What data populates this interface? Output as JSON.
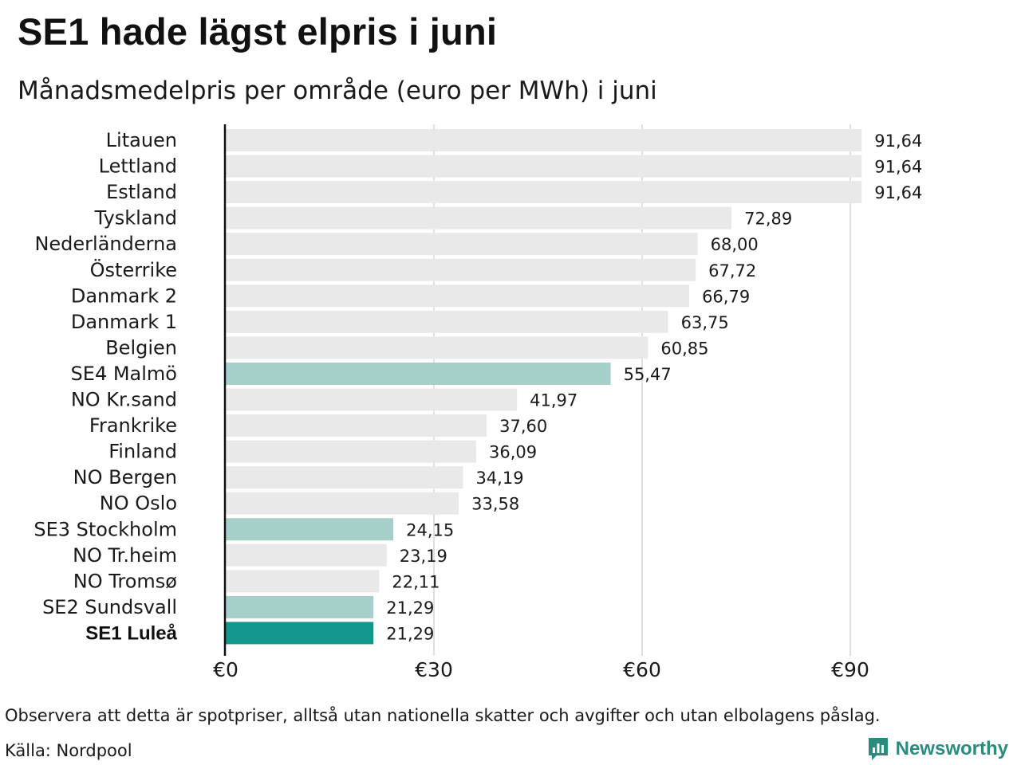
{
  "title": "SE1 hade lägst elpris i juni",
  "subtitle": "Månadsmedelpris per område (euro per MWh) i juni",
  "note": "Observera att detta är spotpriser, alltså utan nationella skatter och avgifter och utan elbolagens påslag.",
  "source": "Källa: Nordpool",
  "brand": {
    "name": "Newsworthy",
    "icon": "newsworthy-logo-icon"
  },
  "colors": {
    "default_bar": "#e9e9e9",
    "se_bar": "#a6cfca",
    "highlight_bar": "#15968a",
    "grid": "#cccccc",
    "axis": "#111111"
  },
  "chart_data": {
    "type": "bar",
    "orientation": "horizontal",
    "title": "SE1 hade lägst elpris i juni",
    "subtitle": "Månadsmedelpris per område (euro per MWh) i juni",
    "xlabel": "",
    "ylabel": "",
    "xlim": [
      0,
      100
    ],
    "ticks": [
      0,
      30,
      60,
      90
    ],
    "tick_labels": [
      "€0",
      "€30",
      "€60",
      "€90"
    ],
    "grid": true,
    "categories": [
      "Litauen",
      "Lettland",
      "Estland",
      "Tyskland",
      "Nederländerna",
      "Österrike",
      "Danmark  2",
      "Danmark  1",
      "Belgien",
      "SE4  Malmö",
      "NO Kr.sand",
      "Frankrike",
      "Finland",
      "NO Bergen",
      "NO Oslo",
      "SE3  Stockholm",
      "NO Tr.heim",
      "NO Tromsø",
      "SE2  Sundsvall",
      "SE1 Luleå"
    ],
    "values": [
      91.64,
      91.64,
      91.64,
      72.89,
      68.0,
      67.72,
      66.79,
      63.75,
      60.85,
      55.47,
      41.97,
      37.6,
      36.09,
      34.19,
      33.58,
      24.15,
      23.19,
      22.11,
      21.29,
      21.29
    ],
    "value_labels": [
      "91,64",
      "91,64",
      "91,64",
      "72,89",
      "68,00",
      "67,72",
      "66,79",
      "63,75",
      "60,85",
      "55,47",
      "41,97",
      "37,60",
      "36,09",
      "34,19",
      "33,58",
      "24,15",
      "23,19",
      "22,11",
      "21,29",
      "21,29"
    ],
    "bar_kind": [
      "default",
      "default",
      "default",
      "default",
      "default",
      "default",
      "default",
      "default",
      "default",
      "se",
      "default",
      "default",
      "default",
      "default",
      "default",
      "se",
      "default",
      "default",
      "se",
      "highlight"
    ]
  }
}
